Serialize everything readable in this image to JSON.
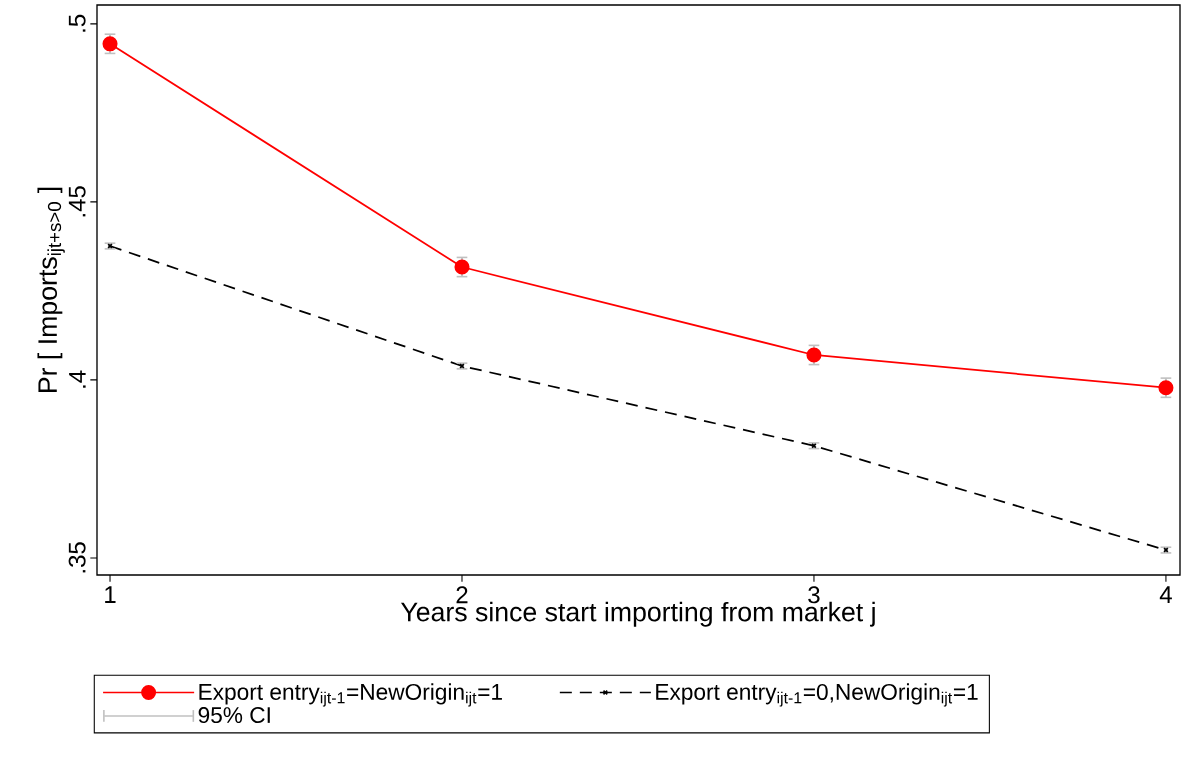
{
  "chart_data": {
    "type": "line",
    "xlabel": "Years since start importing from market j",
    "ylabel": "Pr [ Imports$_{ijt+s>0}$ ]",
    "x": [
      1,
      2,
      3,
      4
    ],
    "series": [
      {
        "name": "Export entry$_{ijt-1}$=NewOrigin$_{ijt}$=1",
        "color": "#ff0000",
        "marker": "circle",
        "line_style": "solid",
        "values": [
          0.4944,
          0.4317,
          0.407,
          0.3978
        ],
        "errors": [
          0.0027,
          0.0027,
          0.0027,
          0.0027
        ]
      },
      {
        "name": "Export entry$_{ijt-1}$=0,NewOrigin$_{ijt}$=1",
        "color": "#000000",
        "marker": "cross",
        "line_style": "dashed",
        "values": [
          0.4376,
          0.4039,
          0.3815,
          0.3522
        ],
        "errors": [
          0.0008,
          0.0008,
          0.0008,
          0.0008
        ]
      },
      {
        "name": "95% CI",
        "color": "#c0c0c0",
        "marker": "none",
        "values": [
          null,
          null,
          null,
          null
        ]
      }
    ],
    "xlim": [
      0.963,
      4.04
    ],
    "ylim": [
      0.3452,
      0.5053
    ],
    "xticks": [
      1,
      2,
      3,
      4
    ],
    "yticks": [
      {
        "value": 0.35,
        "label": ".35"
      },
      {
        "value": 0.4,
        "label": ".4"
      },
      {
        "value": 0.45,
        "label": ".45"
      },
      {
        "value": 0.5,
        "label": ".5"
      }
    ],
    "grid": false,
    "legend": "bottom"
  }
}
